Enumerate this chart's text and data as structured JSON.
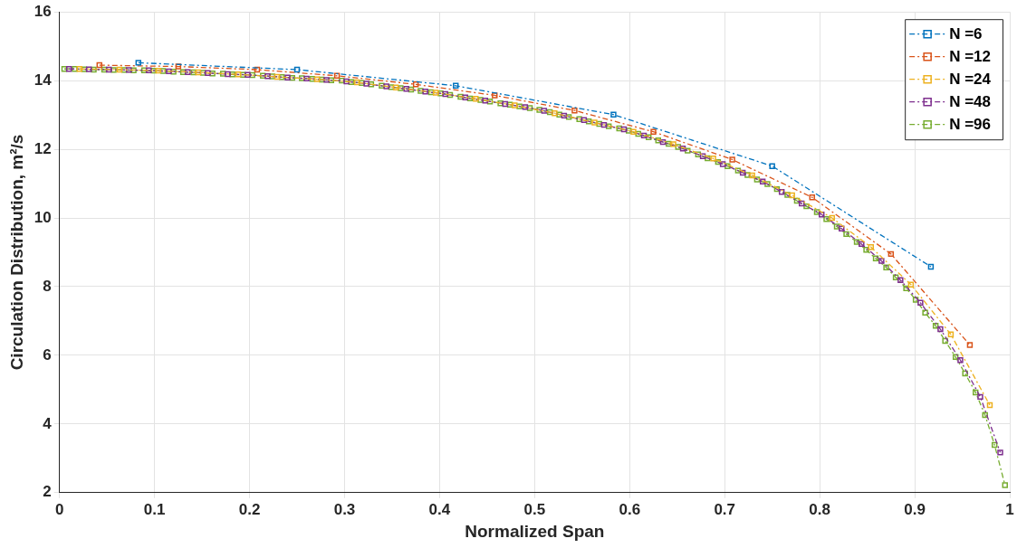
{
  "chart_data": {
    "type": "line",
    "xlabel": "Normalized Span",
    "ylabel": "Circulation Distribution, m²/s",
    "xlim": [
      0,
      1
    ],
    "xticks": [
      0,
      0.1,
      0.2,
      0.3,
      0.4,
      0.5,
      0.6,
      0.7,
      0.8,
      0.9,
      1
    ],
    "ylim": [
      2,
      16
    ],
    "yticks": [
      2,
      4,
      6,
      8,
      10,
      12,
      14,
      16
    ],
    "grid": true,
    "legend": "top right",
    "marker": "square",
    "line_style": "dashed",
    "series": [
      {
        "name": "N =6",
        "color": "#0072bd",
        "x": [
          0.083,
          0.25,
          0.417,
          0.583,
          0.75,
          0.917
        ],
        "values": [
          14.52,
          14.32,
          13.85,
          13.01,
          11.51,
          8.58
        ]
      },
      {
        "name": "N =12",
        "color": "#d95319",
        "x": [
          0.042,
          0.125,
          0.208,
          0.292,
          0.375,
          0.458,
          0.542,
          0.625,
          0.708,
          0.792,
          0.875,
          0.958
        ],
        "values": [
          14.45,
          14.41,
          14.32,
          14.14,
          13.89,
          13.57,
          13.13,
          12.51,
          11.7,
          10.6,
          8.95,
          6.3
        ]
      },
      {
        "name": "N =24",
        "color": "#edb120",
        "x": [
          0.021,
          0.063,
          0.104,
          0.146,
          0.188,
          0.229,
          0.271,
          0.313,
          0.354,
          0.396,
          0.438,
          0.479,
          0.521,
          0.563,
          0.604,
          0.646,
          0.688,
          0.729,
          0.771,
          0.813,
          0.854,
          0.896,
          0.938,
          0.979
        ],
        "values": [
          14.34,
          14.32,
          14.29,
          14.24,
          14.18,
          14.11,
          14.04,
          13.95,
          13.8,
          13.65,
          13.47,
          13.28,
          13.05,
          12.78,
          12.51,
          12.15,
          11.73,
          11.24,
          10.66,
          10.0,
          9.15,
          8.06,
          6.61,
          4.55
        ]
      },
      {
        "name": "N =48",
        "color": "#7e2f8e",
        "x": [
          0.01,
          0.031,
          0.052,
          0.073,
          0.094,
          0.115,
          0.135,
          0.156,
          0.177,
          0.198,
          0.219,
          0.24,
          0.26,
          0.281,
          0.302,
          0.323,
          0.344,
          0.365,
          0.385,
          0.406,
          0.427,
          0.448,
          0.469,
          0.49,
          0.51,
          0.531,
          0.552,
          0.573,
          0.594,
          0.615,
          0.635,
          0.656,
          0.677,
          0.698,
          0.719,
          0.74,
          0.76,
          0.781,
          0.802,
          0.823,
          0.844,
          0.865,
          0.885,
          0.906,
          0.927,
          0.948,
          0.969,
          0.99
        ],
        "values": [
          14.34,
          14.33,
          14.32,
          14.31,
          14.3,
          14.27,
          14.25,
          14.22,
          14.19,
          14.17,
          14.13,
          14.09,
          14.06,
          14.02,
          13.98,
          13.91,
          13.83,
          13.76,
          13.68,
          13.61,
          13.51,
          13.42,
          13.32,
          13.23,
          13.12,
          12.98,
          12.85,
          12.71,
          12.58,
          12.4,
          12.21,
          12.02,
          11.8,
          11.57,
          11.32,
          11.06,
          10.76,
          10.42,
          10.1,
          9.69,
          9.24,
          8.75,
          8.19,
          7.53,
          6.76,
          5.86,
          4.79,
          3.17
        ]
      },
      {
        "name": "N =96",
        "color": "#77ac30",
        "x": [
          0.005,
          0.016,
          0.026,
          0.036,
          0.047,
          0.057,
          0.068,
          0.078,
          0.089,
          0.099,
          0.109,
          0.12,
          0.13,
          0.141,
          0.151,
          0.161,
          0.172,
          0.182,
          0.193,
          0.203,
          0.214,
          0.224,
          0.234,
          0.245,
          0.255,
          0.266,
          0.276,
          0.286,
          0.297,
          0.307,
          0.318,
          0.328,
          0.339,
          0.349,
          0.359,
          0.37,
          0.38,
          0.391,
          0.401,
          0.411,
          0.422,
          0.432,
          0.443,
          0.453,
          0.464,
          0.474,
          0.484,
          0.495,
          0.505,
          0.516,
          0.526,
          0.536,
          0.547,
          0.557,
          0.568,
          0.578,
          0.589,
          0.599,
          0.609,
          0.62,
          0.63,
          0.641,
          0.651,
          0.661,
          0.672,
          0.682,
          0.693,
          0.703,
          0.714,
          0.724,
          0.734,
          0.745,
          0.755,
          0.766,
          0.776,
          0.786,
          0.797,
          0.807,
          0.818,
          0.828,
          0.839,
          0.849,
          0.859,
          0.87,
          0.88,
          0.891,
          0.901,
          0.911,
          0.922,
          0.932,
          0.943,
          0.953,
          0.964,
          0.974,
          0.984,
          0.995
        ],
        "values": [
          14.34,
          14.34,
          14.33,
          14.32,
          14.32,
          14.31,
          14.31,
          14.3,
          14.3,
          14.29,
          14.28,
          14.26,
          14.25,
          14.24,
          14.23,
          14.21,
          14.2,
          14.18,
          14.17,
          14.16,
          14.14,
          14.12,
          14.1,
          14.08,
          14.07,
          14.05,
          14.03,
          14.01,
          14.0,
          13.96,
          13.93,
          13.89,
          13.85,
          13.81,
          13.78,
          13.74,
          13.7,
          13.66,
          13.63,
          13.58,
          13.53,
          13.48,
          13.44,
          13.39,
          13.34,
          13.3,
          13.25,
          13.2,
          13.15,
          13.08,
          13.01,
          12.94,
          12.88,
          12.81,
          12.74,
          12.67,
          12.61,
          12.54,
          12.45,
          12.35,
          12.26,
          12.16,
          12.07,
          11.96,
          11.85,
          11.74,
          11.63,
          11.51,
          11.38,
          11.25,
          11.12,
          10.99,
          10.84,
          10.67,
          10.5,
          10.34,
          10.17,
          9.97,
          9.75,
          9.53,
          9.3,
          9.07,
          8.82,
          8.56,
          8.27,
          7.95,
          7.62,
          7.24,
          6.86,
          6.42,
          5.95,
          5.47,
          4.92,
          4.26,
          3.39,
          2.22
        ]
      }
    ]
  }
}
